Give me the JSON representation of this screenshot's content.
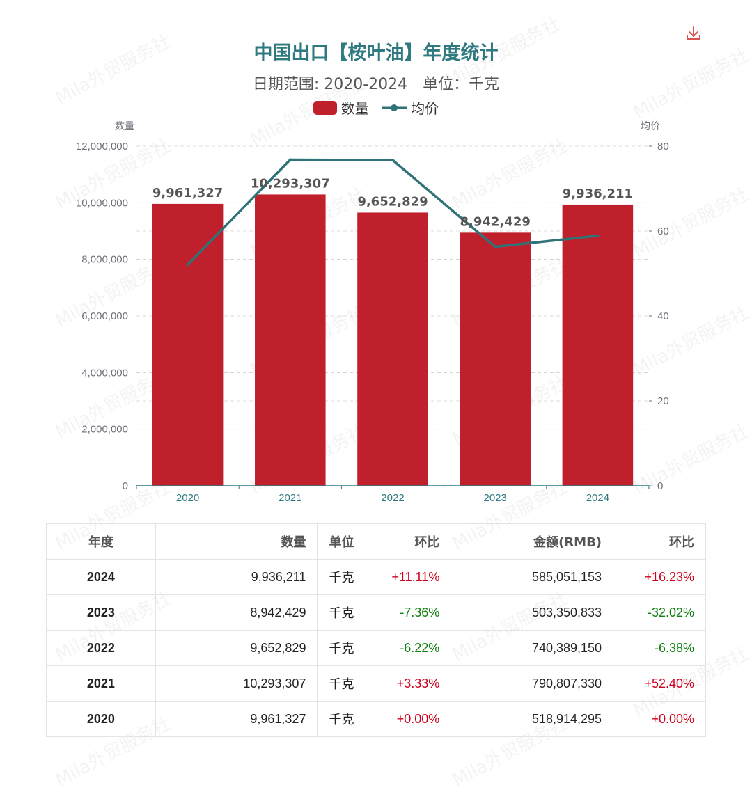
{
  "header": {
    "title": "中国出口【桉叶油】年度统计",
    "date_range": "日期范围: 2020-2024",
    "unit": "单位：千克"
  },
  "legend": {
    "bar_label": "数量",
    "line_label": "均价"
  },
  "colors": {
    "bar": "#c0202b",
    "line": "#2e7378",
    "title": "#2f7a80",
    "positive": "#d0021b",
    "negative": "#108010"
  },
  "chart_data": {
    "type": "bar",
    "title": "中国出口【桉叶油】年度统计",
    "subtitle": "日期范围: 2020-2024 单位：千克",
    "categories": [
      "2020",
      "2021",
      "2022",
      "2023",
      "2024"
    ],
    "series": [
      {
        "name": "数量",
        "type": "bar",
        "axis": "left",
        "values": [
          9961327,
          10293307,
          9652829,
          8942429,
          9936211
        ]
      },
      {
        "name": "均价",
        "type": "line",
        "axis": "right",
        "values": [
          52.1,
          76.8,
          76.7,
          56.3,
          58.9
        ]
      }
    ],
    "y_left": {
      "label": "数量",
      "ylim": [
        0,
        12000000
      ],
      "ticks": [
        "0",
        "2,000,000",
        "4,000,000",
        "6,000,000",
        "8,000,000",
        "10,000,000",
        "12,000,000"
      ]
    },
    "y_right": {
      "label": "均价",
      "ylim": [
        0,
        80
      ],
      "ticks": [
        "0",
        "20",
        "40",
        "60",
        "80"
      ]
    },
    "grid": true,
    "legend_position": "top-center"
  },
  "table": {
    "headers": [
      "年度",
      "数量",
      "单位",
      "环比",
      "金额(RMB)",
      "环比"
    ],
    "rows": [
      {
        "year": "2024",
        "qty": "9,936,211",
        "unit": "千克",
        "qty_change": "+11.11%",
        "amount": "585,051,153",
        "amount_change": "+16.23%"
      },
      {
        "year": "2023",
        "qty": "8,942,429",
        "unit": "千克",
        "qty_change": "-7.36%",
        "amount": "503,350,833",
        "amount_change": "-32.02%"
      },
      {
        "year": "2022",
        "qty": "9,652,829",
        "unit": "千克",
        "qty_change": "-6.22%",
        "amount": "740,389,150",
        "amount_change": "-6.38%"
      },
      {
        "year": "2021",
        "qty": "10,293,307",
        "unit": "千克",
        "qty_change": "+3.33%",
        "amount": "790,807,330",
        "amount_change": "+52.40%"
      },
      {
        "year": "2020",
        "qty": "9,961,327",
        "unit": "千克",
        "qty_change": "+0.00%",
        "amount": "518,914,295",
        "amount_change": "+0.00%"
      }
    ]
  },
  "watermark": "Mila外贸服务社"
}
